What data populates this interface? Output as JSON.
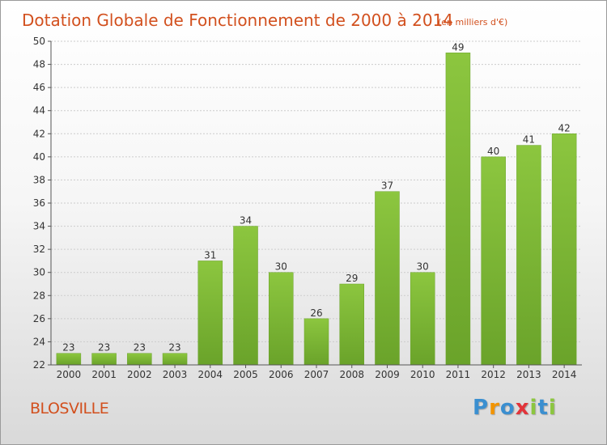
{
  "chart_data": {
    "type": "bar",
    "title": "Dotation Globale de Fonctionnement de 2000 à 2014",
    "subtitle": "(en milliers d'€)",
    "categories": [
      "2000",
      "2001",
      "2002",
      "2003",
      "2004",
      "2005",
      "2006",
      "2007",
      "2008",
      "2009",
      "2010",
      "2011",
      "2012",
      "2013",
      "2014"
    ],
    "values": [
      23,
      23,
      23,
      23,
      31,
      34,
      30,
      26,
      29,
      37,
      30,
      49,
      40,
      41,
      42
    ],
    "ylim": [
      22,
      50
    ],
    "yticks": [
      22,
      24,
      26,
      28,
      30,
      32,
      34,
      36,
      38,
      40,
      42,
      44,
      46,
      48,
      50
    ],
    "xlabel": "",
    "ylabel": "",
    "grid": true,
    "bar_color": "#8cc63f",
    "bar_color_dark": "#6aa32a"
  },
  "place_name": "BLOSVILLE",
  "logo": {
    "text": "Proxiti",
    "letter_colors": [
      "#3b8fd0",
      "#f29400",
      "#3b8fd0",
      "#e2343a",
      "#8cc63f",
      "#3b8fd0",
      "#8cc63f"
    ]
  },
  "colors": {
    "title": "#d2501e",
    "grid": "#cccccc",
    "axis": "#555555"
  }
}
